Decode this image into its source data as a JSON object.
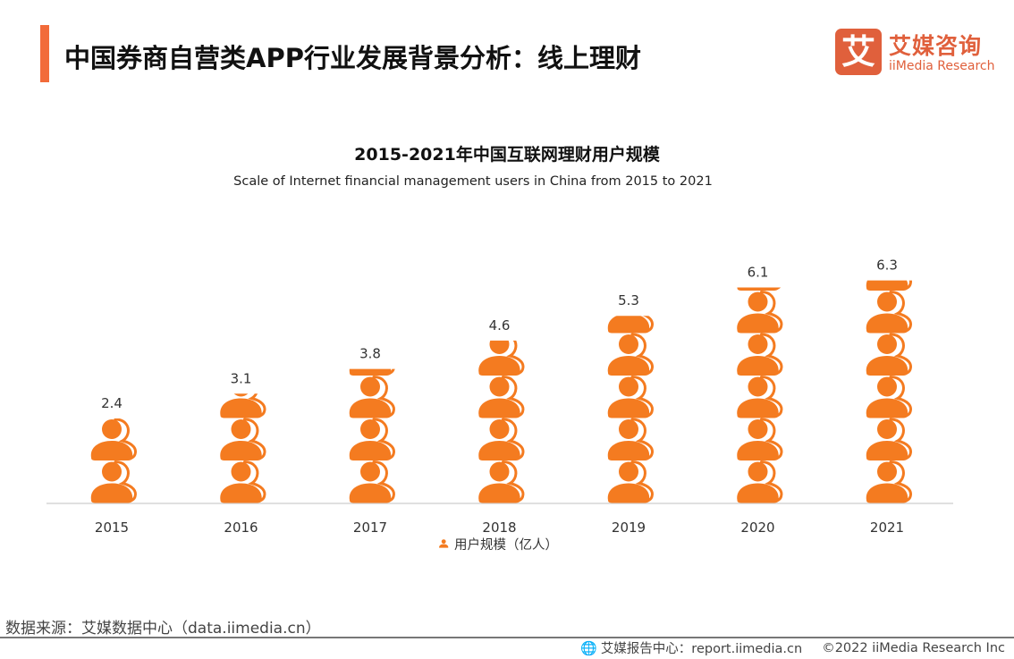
{
  "header": {
    "title": "中国券商自营类APP行业发展背景分析：线上理财",
    "accent_color": "#f26b3a"
  },
  "logo": {
    "mark": "艾",
    "name_cn": "艾媒咨询",
    "name_en": "iiMedia Research",
    "color": "#e0603c"
  },
  "chart_data": {
    "type": "bar",
    "style": "pictogram",
    "icon": "user-icon",
    "icon_color": "#f47b20",
    "units_per_icon": 1.2,
    "title": "2015-2021年中国互联网理财用户规模",
    "subtitle": "Scale of Internet financial management users in China from 2015 to 2021",
    "categories": [
      "2015",
      "2016",
      "2017",
      "2018",
      "2019",
      "2020",
      "2021"
    ],
    "series": [
      {
        "name": "用户规模（亿人）",
        "values": [
          2.4,
          3.1,
          3.8,
          4.6,
          5.3,
          6.1,
          6.3
        ]
      }
    ],
    "data_labels": [
      "2.4",
      "3.1",
      "3.8",
      "4.6",
      "5.3",
      "6.1",
      "6.3"
    ],
    "xlabel": "",
    "ylabel": "",
    "ylim": [
      0,
      7.5
    ],
    "grid": false,
    "legend": {
      "position": "bottom",
      "label": "用户规模（亿人）"
    }
  },
  "source": "数据来源：艾媒数据中心（data.iimedia.cn）",
  "footer": {
    "report_center": "艾媒报告中心：report.iimedia.cn",
    "copyright": "©2022  iiMedia Research  Inc"
  }
}
